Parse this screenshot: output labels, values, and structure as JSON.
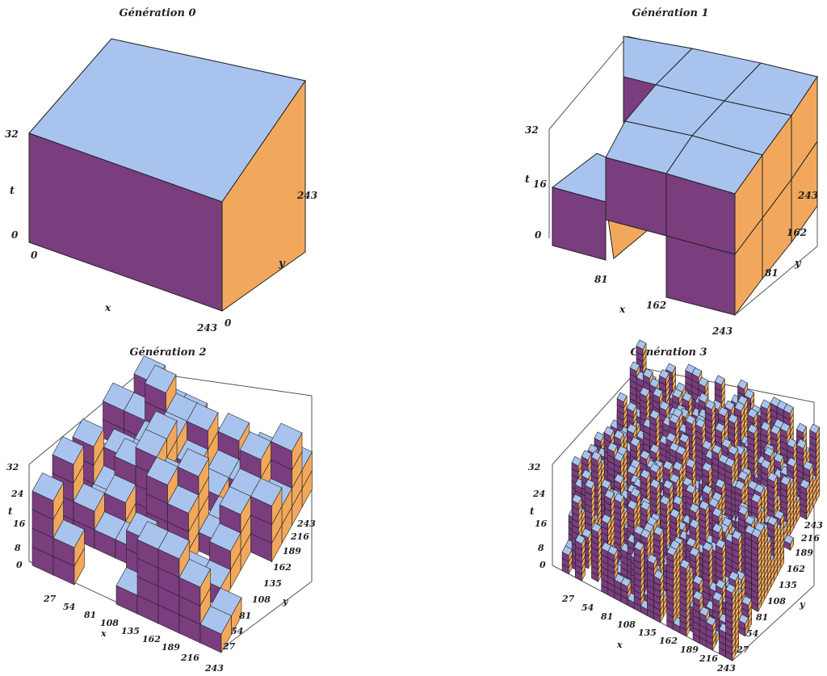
{
  "colors": {
    "top": "#a8c4ee",
    "front": "#7a3d7e",
    "side": "#f2a85c",
    "edge": "#222222",
    "frame": "#555555"
  },
  "panels": [
    {
      "title": "Génération 0",
      "x_label": "x",
      "y_label": "y",
      "z_label": "t",
      "x_ticks": [
        "0",
        "243"
      ],
      "y_ticks": [
        "0",
        "243"
      ],
      "z_ticks": [
        "0",
        "32"
      ]
    },
    {
      "title": "Génération 1",
      "x_label": "x",
      "y_label": "y",
      "z_label": "t",
      "x_ticks": [
        "81",
        "162",
        "243"
      ],
      "y_ticks": [
        "81",
        "162",
        "243"
      ],
      "z_ticks": [
        "0",
        "16",
        "32"
      ]
    },
    {
      "title": "Génération 2",
      "x_label": "x",
      "y_label": "y",
      "z_label": "t",
      "x_ticks": [
        "27",
        "54",
        "81",
        "108",
        "135",
        "162",
        "189",
        "216",
        "243"
      ],
      "y_ticks": [
        "27",
        "54",
        "81",
        "108",
        "135",
        "162",
        "189",
        "216",
        "243"
      ],
      "z_ticks": [
        "0",
        "8",
        "16",
        "24",
        "32"
      ]
    },
    {
      "title": "Génération 3",
      "x_label": "x",
      "y_label": "y",
      "z_label": "t",
      "x_ticks": [
        "27",
        "54",
        "81",
        "108",
        "135",
        "162",
        "189",
        "216",
        "243"
      ],
      "y_ticks": [
        "27",
        "54",
        "81",
        "108",
        "135",
        "162",
        "189",
        "216",
        "243"
      ],
      "z_ticks": [
        "0",
        "8",
        "16",
        "24",
        "32"
      ]
    }
  ]
}
